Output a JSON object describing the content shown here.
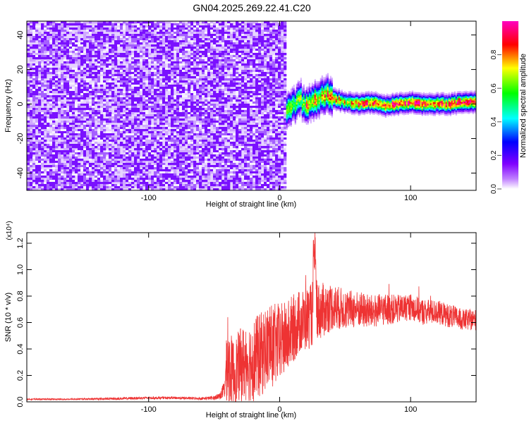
{
  "title": "GN04.2025.269.22.41.C20",
  "chart_data": [
    {
      "type": "heatmap",
      "xlabel": "Height of straight line (km)",
      "ylabel": "Frequency (Hz)",
      "xlim": [
        -193,
        150
      ],
      "ylim": [
        -50,
        48
      ],
      "xticks": [
        -100,
        0,
        100
      ],
      "yticks": [
        -40,
        -20,
        0,
        20,
        40
      ],
      "noise_region_x": [
        -193,
        5
      ],
      "signal_track": {
        "x": [
          5,
          10,
          15,
          20,
          25,
          30,
          35,
          40,
          50,
          60,
          70,
          80,
          90,
          100,
          110,
          120,
          130,
          140,
          150
        ],
        "freq": [
          -4,
          -1,
          3,
          -2,
          2,
          4,
          6,
          3,
          1,
          0,
          1,
          -1,
          0,
          1,
          0,
          0,
          0,
          1,
          1
        ]
      },
      "colorbar": {
        "label": "Normalized spectral amplitude",
        "range": [
          0,
          1
        ],
        "ticks": [
          0.0,
          0.2,
          0.4,
          0.6,
          0.8
        ],
        "tick_labels": [
          "0.0",
          "0.2",
          "0.4",
          "0.6",
          "0.8"
        ],
        "colormap": [
          "#ffffff",
          "#8000ff",
          "#0000ff",
          "#00ffff",
          "#00ff00",
          "#ffff00",
          "#ff0000",
          "#ff00c0"
        ]
      }
    },
    {
      "type": "line",
      "xlabel": "Height of straight line (km)",
      "ylabel": "SNR (10 * v/v)",
      "yscale_label": "(x10⁴)",
      "xlim": [
        -193,
        150
      ],
      "ylim": [
        0,
        1.28
      ],
      "xticks": [
        -100,
        0,
        100
      ],
      "yticks": [
        0.0,
        0.2,
        0.4,
        0.6,
        0.8,
        1.0,
        1.2
      ],
      "ytick_labels": [
        "0.0",
        "0.2",
        "0.4",
        "0.6",
        "0.8",
        "1.0",
        "1.2"
      ],
      "color": "#ee3333",
      "series": [
        {
          "x": [
            -193,
            -160,
            -120,
            -100,
            -80,
            -60,
            -50,
            -45,
            -42,
            -40,
            -38,
            -35,
            -30,
            -25,
            -20,
            -15,
            -10,
            -5,
            0,
            5,
            10,
            15,
            20,
            25,
            26,
            27,
            28,
            30,
            35,
            40,
            50,
            60,
            70,
            80,
            90,
            100,
            110,
            120,
            130,
            140,
            150
          ],
          "y": [
            0.02,
            0.02,
            0.025,
            0.03,
            0.03,
            0.025,
            0.03,
            0.05,
            0.1,
            0.3,
            0.25,
            0.22,
            0.28,
            0.3,
            0.32,
            0.35,
            0.4,
            0.42,
            0.45,
            0.48,
            0.55,
            0.6,
            0.62,
            0.66,
            0.9,
            1.1,
            0.75,
            0.68,
            0.7,
            0.72,
            0.7,
            0.7,
            0.68,
            0.7,
            0.7,
            0.72,
            0.68,
            0.68,
            0.65,
            0.62,
            0.62
          ],
          "spread": [
            0.005,
            0.005,
            0.01,
            0.01,
            0.01,
            0.01,
            0.015,
            0.03,
            0.08,
            0.3,
            0.28,
            0.25,
            0.28,
            0.3,
            0.32,
            0.32,
            0.33,
            0.32,
            0.3,
            0.28,
            0.26,
            0.25,
            0.24,
            0.24,
            0.3,
            0.3,
            0.25,
            0.22,
            0.2,
            0.18,
            0.15,
            0.14,
            0.13,
            0.12,
            0.11,
            0.1,
            0.1,
            0.09,
            0.09,
            0.08,
            0.08
          ]
        }
      ]
    }
  ]
}
